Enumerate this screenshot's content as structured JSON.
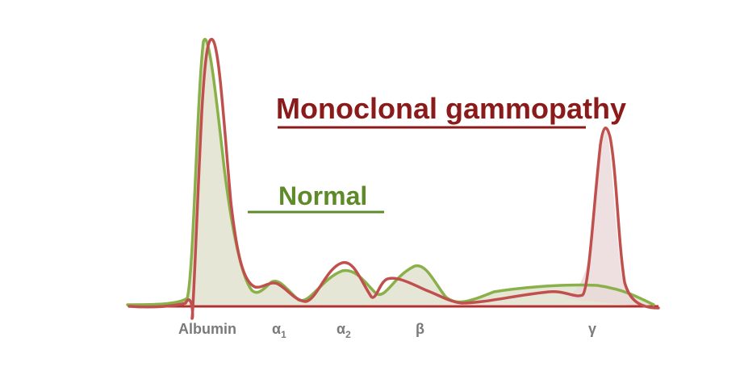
{
  "legend": {
    "mono_label": "Monoclonal gammopathy",
    "normal_label": "Normal"
  },
  "fractions": [
    {
      "symbol": "Albumin",
      "sub": ""
    },
    {
      "symbol": "α",
      "sub": "1"
    },
    {
      "symbol": "α",
      "sub": "2"
    },
    {
      "symbol": "β",
      "sub": ""
    },
    {
      "symbol": "γ",
      "sub": ""
    }
  ],
  "colors": {
    "mono": "#c0504d",
    "mono_text": "#8b1a1a",
    "normal": "#8ab04a",
    "normal_text": "#5f8a2a",
    "axis": "#b03030",
    "fill_normal": "#dcddc8",
    "fill_mono": "#ead8d8",
    "label": "#7a7a7a"
  }
}
